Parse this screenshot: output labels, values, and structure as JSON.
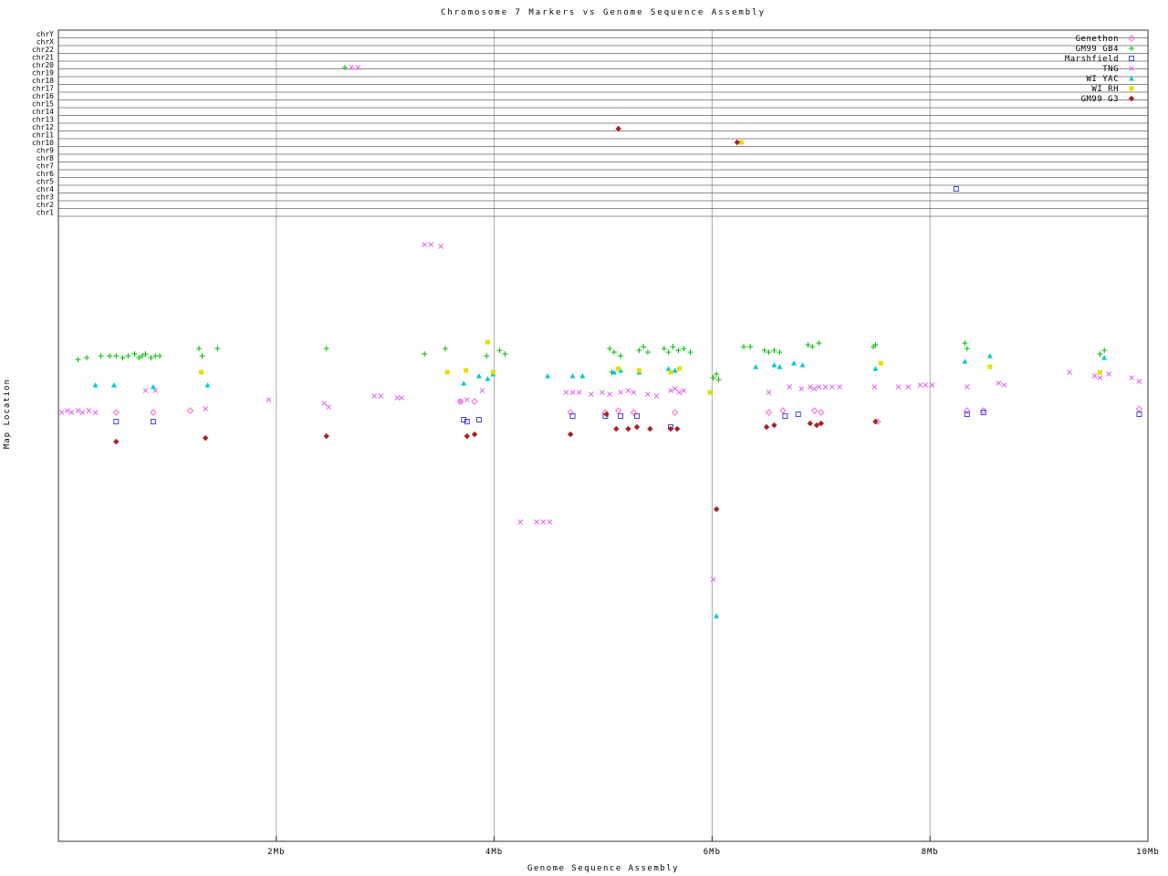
{
  "title": "Chromosome 7 Markers vs Genome Sequence Assembly",
  "x_axis": {
    "label": "Genome Sequence Assembly",
    "ticks": [
      {
        "mb": 2,
        "label": "2Mb"
      },
      {
        "mb": 4,
        "label": "4Mb"
      },
      {
        "mb": 6,
        "label": "6Mb"
      },
      {
        "mb": 8,
        "label": "8Mb"
      },
      {
        "mb": 10,
        "label": "10Mb"
      }
    ]
  },
  "y_axis": {
    "label": "Map Location",
    "chromosome_bands": [
      "chrY",
      "chrX",
      "chr22",
      "chr21",
      "chr20",
      "chr19",
      "chr18",
      "chr17",
      "chr16",
      "chr15",
      "chr14",
      "chr13",
      "chr12",
      "chr11",
      "chr10",
      "chr9",
      "chr8",
      "chr7",
      "chr6",
      "chr5",
      "chr4",
      "chr3",
      "chr2",
      "chr1"
    ]
  },
  "chart_data": {
    "type": "scatter",
    "title": "Chromosome 7 Markers vs Genome Sequence Assembly",
    "xlabel": "Genome Sequence Assembly",
    "ylabel": "Map Location",
    "x_units": "Mb",
    "xlim": [
      0,
      10
    ],
    "y_units": "map location (axis unlabeled in source; y stored as screen px, 33=top 922=bottom)",
    "grid": "vertical gridlines at 2,4,6,8 Mb; horizontal chromosome band lines at top",
    "legend_position": "top-right",
    "series": [
      {
        "name": "Genethon",
        "marker": "diamond-open",
        "color": "#ff66cc",
        "points": [
          [
            0.53,
            452
          ],
          [
            0.87,
            452
          ],
          [
            1.21,
            450
          ],
          [
            3.69,
            440
          ],
          [
            3.82,
            440
          ],
          [
            4.7,
            452
          ],
          [
            5.02,
            452
          ],
          [
            5.14,
            450
          ],
          [
            5.28,
            452
          ],
          [
            5.66,
            452
          ],
          [
            6.52,
            452
          ],
          [
            6.65,
            450
          ],
          [
            6.94,
            450
          ],
          [
            7.0,
            452
          ],
          [
            7.52,
            462
          ],
          [
            8.34,
            450
          ],
          [
            8.49,
            450
          ],
          [
            9.92,
            448
          ]
        ]
      },
      {
        "name": "GM99 GB4",
        "marker": "plus",
        "color": "#00bb00",
        "points": [
          [
            0.18,
            394
          ],
          [
            0.26,
            392
          ],
          [
            0.39,
            390
          ],
          [
            0.47,
            390
          ],
          [
            0.53,
            390
          ],
          [
            0.59,
            392
          ],
          [
            0.64,
            390
          ],
          [
            0.7,
            388
          ],
          [
            0.74,
            392
          ],
          [
            0.77,
            390
          ],
          [
            0.8,
            388
          ],
          [
            0.85,
            392
          ],
          [
            0.89,
            390
          ],
          [
            0.93,
            390
          ],
          [
            1.29,
            382
          ],
          [
            1.32,
            390
          ],
          [
            1.46,
            382
          ],
          [
            2.46,
            382
          ],
          [
            2.63,
            74
          ],
          [
            3.36,
            388
          ],
          [
            3.55,
            382
          ],
          [
            3.93,
            390
          ],
          [
            4.05,
            384
          ],
          [
            4.1,
            388
          ],
          [
            5.06,
            382
          ],
          [
            5.08,
            408
          ],
          [
            5.1,
            386
          ],
          [
            5.16,
            390
          ],
          [
            5.33,
            384
          ],
          [
            5.37,
            380
          ],
          [
            5.41,
            386
          ],
          [
            5.56,
            382
          ],
          [
            5.6,
            386
          ],
          [
            5.64,
            380
          ],
          [
            5.69,
            384
          ],
          [
            5.74,
            382
          ],
          [
            5.8,
            386
          ],
          [
            6.01,
            414
          ],
          [
            6.04,
            410
          ],
          [
            6.06,
            416
          ],
          [
            6.29,
            380
          ],
          [
            6.35,
            380
          ],
          [
            6.48,
            384
          ],
          [
            6.52,
            386
          ],
          [
            6.57,
            384
          ],
          [
            6.62,
            386
          ],
          [
            6.88,
            378
          ],
          [
            6.92,
            380
          ],
          [
            6.98,
            376
          ],
          [
            7.48,
            380
          ],
          [
            7.5,
            378
          ],
          [
            8.32,
            376
          ],
          [
            8.34,
            382
          ],
          [
            9.56,
            388
          ],
          [
            9.6,
            384
          ]
        ]
      },
      {
        "name": "Marshfield",
        "marker": "square-open",
        "color": "#4444dd",
        "points": [
          [
            0.53,
            462
          ],
          [
            0.87,
            462
          ],
          [
            3.72,
            460
          ],
          [
            3.75,
            462
          ],
          [
            3.86,
            460
          ],
          [
            4.72,
            456
          ],
          [
            5.02,
            456
          ],
          [
            5.16,
            456
          ],
          [
            5.31,
            456
          ],
          [
            5.62,
            468
          ],
          [
            6.67,
            456
          ],
          [
            6.79,
            454
          ],
          [
            8.24,
            207
          ],
          [
            8.34,
            454
          ],
          [
            8.49,
            452
          ],
          [
            9.92,
            454
          ]
        ]
      },
      {
        "name": "TNG",
        "marker": "cross",
        "color": "#dd66ee",
        "points": [
          [
            0.03,
            452
          ],
          [
            0.08,
            450
          ],
          [
            0.12,
            452
          ],
          [
            0.18,
            450
          ],
          [
            0.22,
            452
          ],
          [
            0.28,
            450
          ],
          [
            0.34,
            452
          ],
          [
            0.8,
            428
          ],
          [
            0.89,
            428
          ],
          [
            1.35,
            448
          ],
          [
            1.93,
            438
          ],
          [
            2.44,
            442
          ],
          [
            2.48,
            446
          ],
          [
            2.69,
            74
          ],
          [
            2.75,
            74
          ],
          [
            2.9,
            434
          ],
          [
            2.96,
            434
          ],
          [
            3.11,
            436
          ],
          [
            3.15,
            436
          ],
          [
            3.36,
            268
          ],
          [
            3.42,
            268
          ],
          [
            3.51,
            270
          ],
          [
            3.69,
            440
          ],
          [
            3.75,
            438
          ],
          [
            3.89,
            428
          ],
          [
            4.24,
            572
          ],
          [
            4.39,
            572
          ],
          [
            4.45,
            572
          ],
          [
            4.51,
            572
          ],
          [
            4.66,
            430
          ],
          [
            4.72,
            430
          ],
          [
            4.78,
            430
          ],
          [
            4.89,
            432
          ],
          [
            4.99,
            430
          ],
          [
            5.06,
            432
          ],
          [
            5.16,
            430
          ],
          [
            5.23,
            428
          ],
          [
            5.28,
            430
          ],
          [
            5.41,
            432
          ],
          [
            5.49,
            434
          ],
          [
            5.62,
            428
          ],
          [
            5.66,
            426
          ],
          [
            5.7,
            430
          ],
          [
            5.74,
            428
          ],
          [
            6.01,
            635
          ],
          [
            6.52,
            430
          ],
          [
            6.71,
            424
          ],
          [
            6.82,
            426
          ],
          [
            6.9,
            424
          ],
          [
            6.94,
            426
          ],
          [
            6.98,
            424
          ],
          [
            7.04,
            424
          ],
          [
            7.1,
            424
          ],
          [
            7.17,
            424
          ],
          [
            7.49,
            424
          ],
          [
            7.71,
            424
          ],
          [
            7.8,
            424
          ],
          [
            7.91,
            422
          ],
          [
            7.96,
            422
          ],
          [
            8.02,
            422
          ],
          [
            8.34,
            424
          ],
          [
            8.63,
            420
          ],
          [
            8.68,
            422
          ],
          [
            9.28,
            408
          ],
          [
            9.51,
            412
          ],
          [
            9.56,
            414
          ],
          [
            9.64,
            410
          ],
          [
            9.85,
            414
          ],
          [
            9.92,
            418
          ]
        ]
      },
      {
        "name": "WI YAC",
        "marker": "triangle-filled",
        "color": "#00cccc",
        "points": [
          [
            0.34,
            422
          ],
          [
            0.51,
            422
          ],
          [
            0.87,
            424
          ],
          [
            1.37,
            422
          ],
          [
            3.72,
            420
          ],
          [
            3.86,
            412
          ],
          [
            3.94,
            415
          ],
          [
            3.99,
            410
          ],
          [
            4.49,
            412
          ],
          [
            4.72,
            412
          ],
          [
            4.81,
            412
          ],
          [
            5.1,
            408
          ],
          [
            5.16,
            406
          ],
          [
            5.33,
            408
          ],
          [
            5.6,
            404
          ],
          [
            5.66,
            406
          ],
          [
            6.04,
            675
          ],
          [
            6.4,
            402
          ],
          [
            6.57,
            400
          ],
          [
            6.62,
            402
          ],
          [
            6.75,
            398
          ],
          [
            6.83,
            400
          ],
          [
            7.5,
            404
          ],
          [
            8.32,
            396
          ],
          [
            8.55,
            390
          ],
          [
            9.6,
            392
          ]
        ]
      },
      {
        "name": "WI RH",
        "marker": "square-filled",
        "color": "#e0e000",
        "points": [
          [
            1.31,
            408
          ],
          [
            3.57,
            408
          ],
          [
            3.74,
            406
          ],
          [
            3.94,
            375
          ],
          [
            3.99,
            408
          ],
          [
            5.14,
            404
          ],
          [
            5.33,
            406
          ],
          [
            5.62,
            408
          ],
          [
            5.7,
            404
          ],
          [
            5.98,
            430
          ],
          [
            6.27,
            156
          ],
          [
            7.55,
            398
          ],
          [
            8.55,
            402
          ],
          [
            9.56,
            408
          ]
        ]
      },
      {
        "name": "GM99 G3",
        "marker": "diamond-filled",
        "color": "#aa2222",
        "points": [
          [
            0.53,
            484
          ],
          [
            1.35,
            480
          ],
          [
            2.46,
            478
          ],
          [
            3.75,
            478
          ],
          [
            3.82,
            476
          ],
          [
            4.7,
            476
          ],
          [
            5.03,
            454
          ],
          [
            5.12,
            470
          ],
          [
            5.14,
            141
          ],
          [
            5.23,
            470
          ],
          [
            5.31,
            468
          ],
          [
            5.43,
            470
          ],
          [
            5.62,
            470
          ],
          [
            5.68,
            470
          ],
          [
            6.04,
            558
          ],
          [
            6.23,
            156
          ],
          [
            6.5,
            468
          ],
          [
            6.57,
            466
          ],
          [
            6.9,
            464
          ],
          [
            6.96,
            466
          ],
          [
            7.0,
            464
          ],
          [
            7.5,
            462
          ]
        ]
      }
    ]
  }
}
